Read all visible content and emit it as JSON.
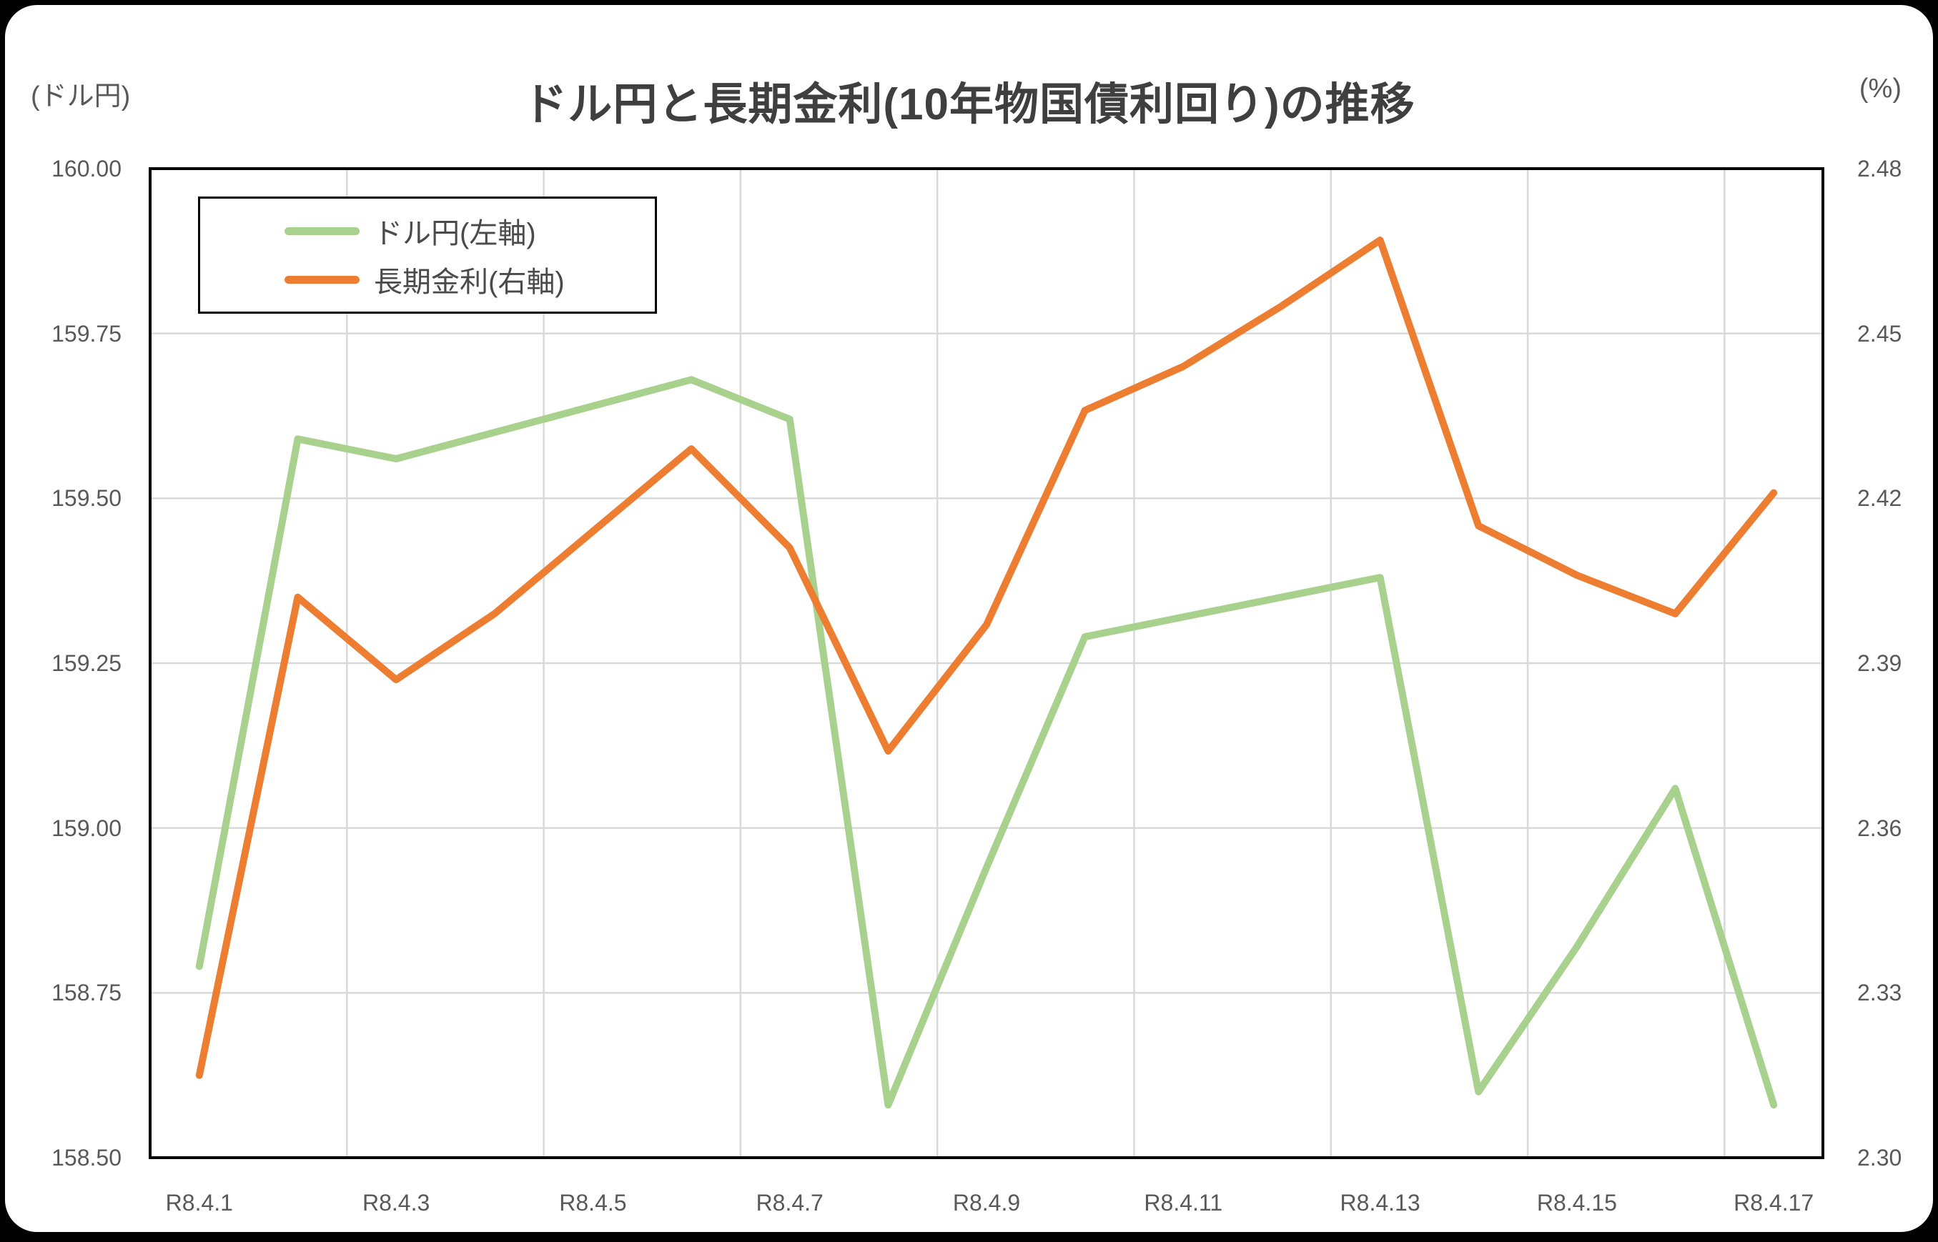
{
  "chart_data": {
    "type": "line",
    "title": "ドル円と長期金利(10年物国債利回り)の推移",
    "grid": true,
    "legend_position": "top-left-inside",
    "n_points": 17,
    "x_tick_labels": [
      "R8.4.1",
      "R8.4.3",
      "R8.4.5",
      "R8.4.7",
      "R8.4.9",
      "R8.4.11",
      "R8.4.13",
      "R8.4.15",
      "R8.4.17"
    ],
    "y_left": {
      "unit_label": "(ドル円)",
      "min": 158.5,
      "max": 160.0,
      "step": 0.25,
      "tick_labels": [
        "160.00",
        "159.75",
        "159.50",
        "159.25",
        "159.00",
        "158.75",
        "158.50"
      ]
    },
    "y_right": {
      "unit_label": "(%)",
      "min": 2.3,
      "max": 2.48,
      "step": 0.03,
      "tick_labels": [
        "2.48",
        "2.45",
        "2.42",
        "2.39",
        "2.36",
        "2.33",
        "2.30"
      ]
    },
    "series": [
      {
        "name": "ドル円(左軸)",
        "axis": "left",
        "color": "#a9d18e",
        "values": [
          158.79,
          159.59,
          159.56,
          159.6,
          159.64,
          159.68,
          159.62,
          158.58,
          158.94,
          159.29,
          159.32,
          159.35,
          159.38,
          158.6,
          158.82,
          159.06,
          158.58
        ]
      },
      {
        "name": "長期金利(右軸)",
        "axis": "right",
        "color": "#ed7d31",
        "values": [
          2.315,
          2.402,
          2.387,
          2.399,
          2.414,
          2.429,
          2.411,
          2.374,
          2.397,
          2.436,
          2.444,
          2.455,
          2.467,
          2.415,
          2.406,
          2.399,
          2.421
        ]
      }
    ],
    "colors": {
      "gridline": "#d9d9d9",
      "plot_border": "#000000",
      "axis_text": "#595959",
      "title_text": "#3f3f3f"
    }
  }
}
